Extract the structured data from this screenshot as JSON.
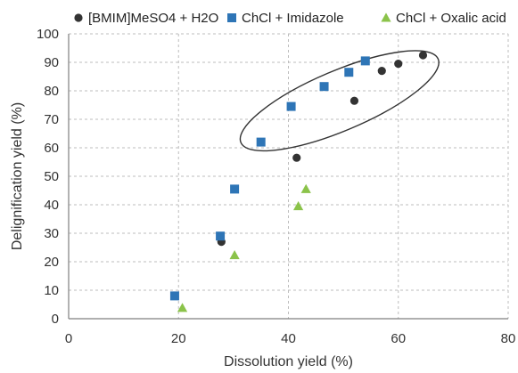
{
  "chart_data": {
    "type": "scatter",
    "xlabel": "Dissolution yield (%)",
    "ylabel": "Delignification yield  (%)",
    "xlim": [
      0,
      80
    ],
    "ylim": [
      0,
      100
    ],
    "x_ticks": [
      0,
      20,
      40,
      60,
      80
    ],
    "y_ticks": [
      0,
      10,
      20,
      30,
      40,
      50,
      60,
      70,
      80,
      90,
      100
    ],
    "grid": true,
    "legend_position": "top",
    "series": [
      {
        "name": "[BMIM]MeSO4 + H2O",
        "marker": "circle",
        "color": "#333333",
        "points": [
          [
            27.8,
            27
          ],
          [
            41.5,
            56.5
          ],
          [
            52,
            76.5
          ],
          [
            57,
            87
          ],
          [
            60,
            89.5
          ],
          [
            64.5,
            92.5
          ]
        ]
      },
      {
        "name": "ChCl + Imidazole",
        "marker": "square",
        "color": "#2e75b6",
        "points": [
          [
            19.3,
            8
          ],
          [
            27.6,
            29
          ],
          [
            30.2,
            45.5
          ],
          [
            35,
            62
          ],
          [
            40.5,
            74.5
          ],
          [
            46.5,
            81.5
          ],
          [
            51,
            86.5
          ],
          [
            54,
            90.5
          ]
        ]
      },
      {
        "name": "ChCl + Oxalic acid",
        "marker": "triangle",
        "color": "#8bc34a",
        "points": [
          [
            20.7,
            3.8
          ],
          [
            30.2,
            22.3
          ],
          [
            41.8,
            39.5
          ],
          [
            43.2,
            45.5
          ]
        ]
      }
    ],
    "annotations": [
      {
        "shape": "ellipse",
        "cx": 49.3,
        "cy": 76.5,
        "rx": 19.5,
        "ry": 10.5,
        "angle_deg": -23,
        "color": "#333333"
      }
    ]
  }
}
